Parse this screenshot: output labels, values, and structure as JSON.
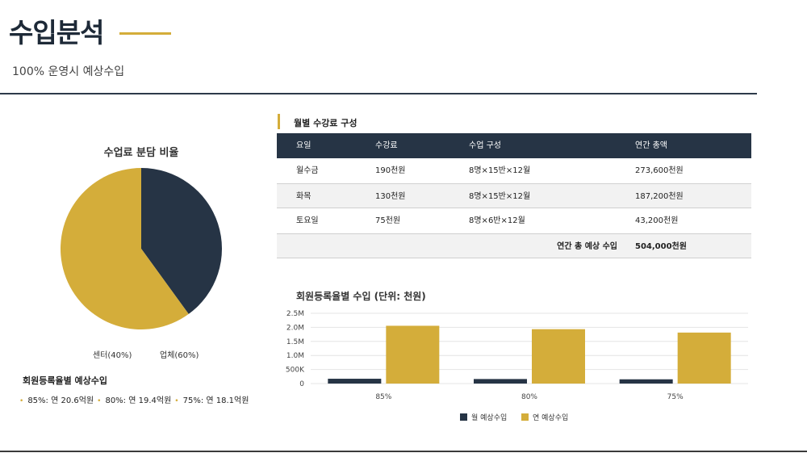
{
  "page": {
    "title": "수입분석",
    "subtitle": "100% 운영시 예상수입"
  },
  "pie": {
    "title": "수업료 분담 비율",
    "slices": [
      {
        "label": "센터(40%)",
        "value": 40,
        "color": "#263445"
      },
      {
        "label": "업체(60%)",
        "value": 60,
        "color": "#d4ad3a"
      }
    ]
  },
  "estimate": {
    "title": "회원등록율별 예상수입",
    "items": [
      "85%: 연 20.6억원",
      "80%: 연 19.4억원",
      "75%: 연 18.1억원"
    ]
  },
  "fee_table": {
    "label": "월별 수강료 구성",
    "headers": [
      "요일",
      "수강료",
      "수업 구성",
      "연간 총액"
    ],
    "rows": [
      [
        "월수금",
        "190천원",
        "8명×15반×12월",
        "273,600천원"
      ],
      [
        "화목",
        "130천원",
        "8명×15반×12월",
        "187,200천원"
      ],
      [
        "토요일",
        "75천원",
        "8명×6반×12월",
        "43,200천원"
      ]
    ],
    "total_label": "연간 총 예상 수입",
    "total_value": "504,000천원"
  },
  "chart_data": {
    "type": "bar",
    "title": "회원등록율별 수입 (단위: 천원)",
    "categories": [
      "85%",
      "80%",
      "75%"
    ],
    "series": [
      {
        "name": "월 예상수입",
        "color": "#263445",
        "values": [
          171360,
          161280,
          151200
        ]
      },
      {
        "name": "연 예상수입",
        "color": "#d4ad3a",
        "values": [
          2056320,
          1935360,
          1814400
        ]
      }
    ],
    "yticks": [
      "0",
      "500K",
      "1.0M",
      "1.5M",
      "2.0M",
      "2.5M"
    ],
    "ylim": [
      0,
      2500000
    ],
    "legend": "bottom",
    "grid": true
  }
}
